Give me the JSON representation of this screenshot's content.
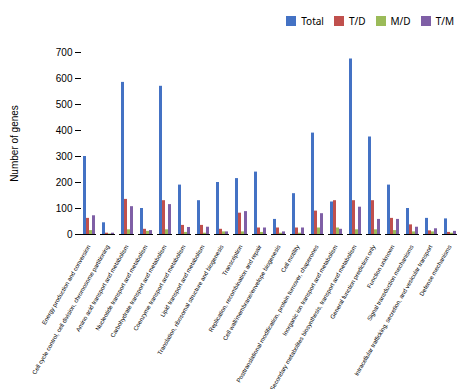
{
  "chart_data": {
    "type": "bar",
    "ylabel": "Number of genes",
    "categories": [
      "Energy production and conversion",
      "Cell cycle control, cell division, chromosome partitioning",
      "Amino acid transport and metabolism",
      "Nucleotide transport and metabolism",
      "Carbohydrate transport and metabolism",
      "Coenzyme transport and metabolism",
      "Lipid transport and metabolism",
      "Translation, ribosomal structure and biogenesis",
      "Transcription",
      "Replication, recombination and repair",
      "Cell wall/membrane/envelope biogenesis",
      "Cell motility",
      "Posttranslational modification, protein turnover, chaperones",
      "Inorganic ion transport and metabolism",
      "Secondary metabolites biosynthesis, transport and metabolism",
      "General function prediction only",
      "Function unknown",
      "Signal transduction mechanisms",
      "Intracellular trafficking, secretion, and vesicular transport",
      "Defense mechanisms"
    ],
    "series": [
      {
        "name": "Total",
        "color": "#4472c4",
        "values": [
          300,
          45,
          585,
          100,
          570,
          190,
          130,
          200,
          215,
          240,
          58,
          157,
          390,
          125,
          675,
          375,
          190,
          100,
          62,
          60
        ]
      },
      {
        "name": "T/D",
        "color": "#c0504d",
        "values": [
          62,
          5,
          135,
          20,
          130,
          35,
          35,
          20,
          82,
          25,
          25,
          25,
          90,
          130,
          130,
          130,
          62,
          37,
          14,
          8
        ]
      },
      {
        "name": "M/D",
        "color": "#9bbb59",
        "values": [
          15,
          2,
          18,
          12,
          18,
          8,
          5,
          10,
          10,
          8,
          5,
          5,
          25,
          25,
          18,
          18,
          15,
          10,
          10,
          5
        ]
      },
      {
        "name": "T/M",
        "color": "#7f5fa6",
        "values": [
          72,
          5,
          107,
          15,
          115,
          27,
          28,
          10,
          88,
          25,
          10,
          25,
          80,
          20,
          105,
          58,
          58,
          28,
          22,
          12
        ]
      }
    ],
    "ylim": [
      0,
      700
    ],
    "yticks": [
      0,
      100,
      200,
      300,
      400,
      500,
      600,
      700
    ],
    "legend": "upper right"
  }
}
